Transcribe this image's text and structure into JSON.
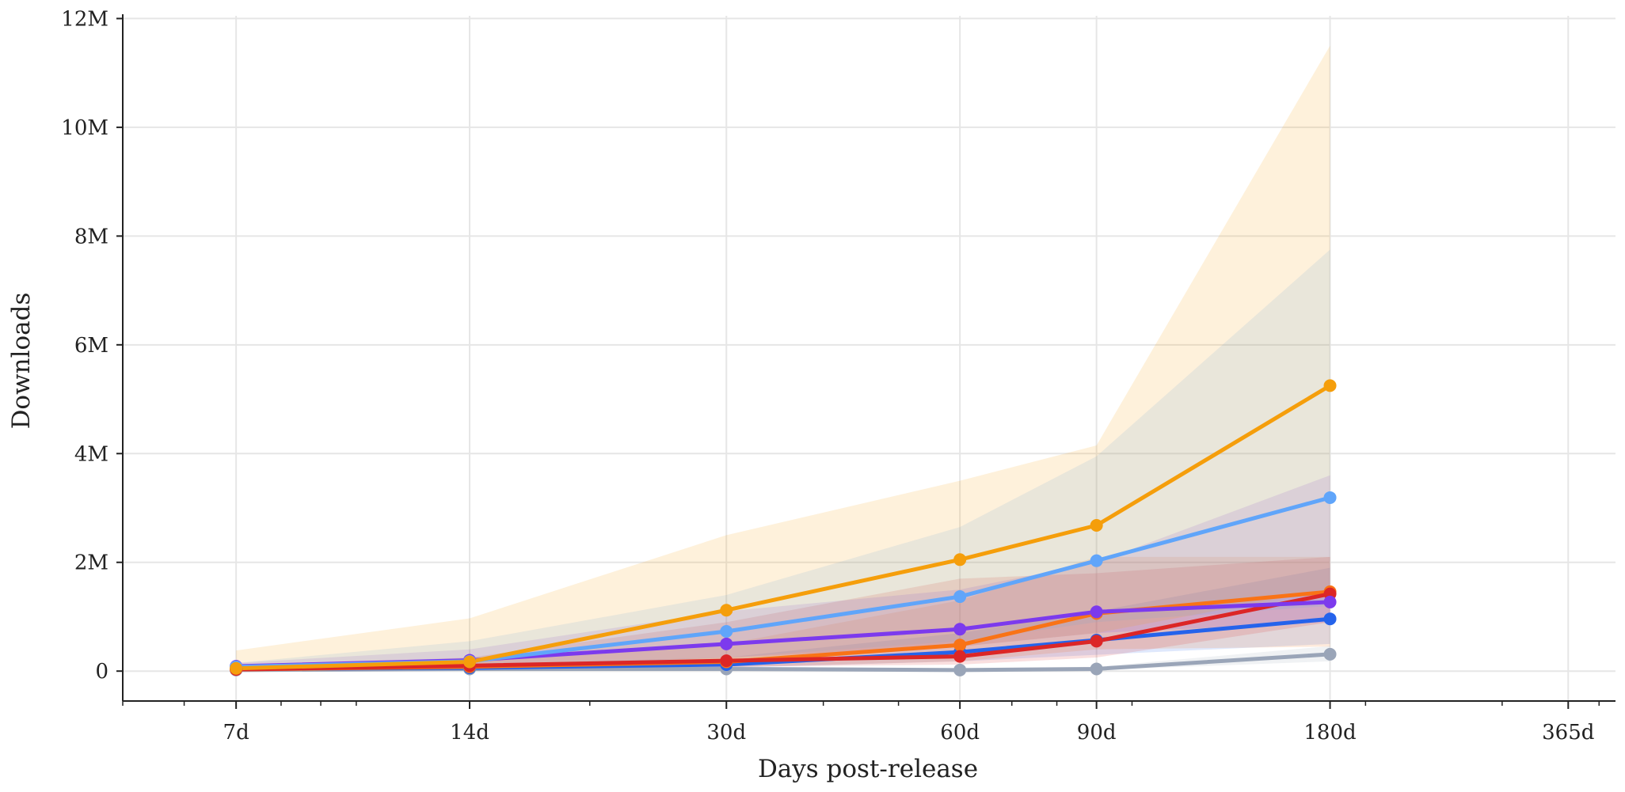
{
  "chart_data": {
    "type": "line",
    "xlabel": "Days post-release",
    "ylabel": "Downloads",
    "x_scale": "log",
    "x_tick_values": [
      7,
      14,
      30,
      60,
      90,
      180,
      365
    ],
    "x_tick_labels": [
      "7d",
      "14d",
      "30d",
      "60d",
      "90d",
      "180d",
      "365d"
    ],
    "x_range": [
      5,
      420
    ],
    "y_tick_values": [
      0,
      2000000,
      4000000,
      6000000,
      8000000,
      10000000,
      12000000
    ],
    "y_tick_labels": [
      "0",
      "2M",
      "4M",
      "6M",
      "8M",
      "10M",
      "12M"
    ],
    "y_range": [
      -550000,
      12050000
    ],
    "grid": true,
    "series": [
      {
        "color": "#9aa5b8",
        "x": [
          7,
          14,
          30,
          60,
          90,
          180
        ],
        "values": [
          20000,
          40000,
          40000,
          20000,
          40000,
          310000
        ],
        "lower": [
          10000,
          20000,
          20000,
          10000,
          20000,
          180000
        ],
        "upper": [
          40000,
          80000,
          80000,
          50000,
          80000,
          460000
        ]
      },
      {
        "color": "#2563eb",
        "x": [
          7,
          14,
          30,
          60,
          90,
          180
        ],
        "values": [
          40000,
          60000,
          120000,
          350000,
          570000,
          960000
        ],
        "lower": [
          20000,
          30000,
          60000,
          180000,
          300000,
          500000
        ],
        "upper": [
          80000,
          120000,
          250000,
          700000,
          1100000,
          1900000
        ]
      },
      {
        "color": "#f97316",
        "x": [
          7,
          14,
          30,
          60,
          90,
          180
        ],
        "values": [
          30000,
          80000,
          170000,
          480000,
          1060000,
          1460000
        ],
        "lower": [
          10000,
          30000,
          70000,
          180000,
          400000,
          450000
        ],
        "upper": [
          80000,
          200000,
          500000,
          1300000,
          2100000,
          2100000
        ]
      },
      {
        "color": "#dc2626",
        "x": [
          7,
          14,
          30,
          60,
          90,
          180
        ],
        "values": [
          30000,
          100000,
          190000,
          270000,
          550000,
          1420000
        ],
        "lower": [
          10000,
          40000,
          80000,
          120000,
          250000,
          900000
        ],
        "upper": [
          80000,
          250000,
          900000,
          1700000,
          1800000,
          2100000
        ]
      },
      {
        "color": "#7c3aed",
        "x": [
          7,
          14,
          30,
          60,
          90,
          180
        ],
        "values": [
          90000,
          200000,
          500000,
          770000,
          1090000,
          1270000
        ],
        "lower": [
          30000,
          80000,
          250000,
          450000,
          700000,
          900000
        ],
        "upper": [
          150000,
          400000,
          1100000,
          1500000,
          2000000,
          3600000
        ]
      },
      {
        "color": "#60a5fa",
        "x": [
          7,
          14,
          30,
          60,
          90,
          180
        ],
        "values": [
          80000,
          180000,
          730000,
          1370000,
          2030000,
          3190000
        ],
        "lower": [
          30000,
          70000,
          250000,
          550000,
          900000,
          1200000
        ],
        "upper": [
          150000,
          550000,
          1400000,
          2650000,
          3950000,
          7750000
        ]
      },
      {
        "color": "#f59e0b",
        "x": [
          7,
          14,
          30,
          60,
          90,
          180
        ],
        "values": [
          50000,
          170000,
          1120000,
          2050000,
          2680000,
          5250000
        ],
        "lower": [
          10000,
          40000,
          200000,
          450000,
          700000,
          1500000
        ],
        "upper": [
          380000,
          970000,
          2500000,
          3500000,
          4150000,
          11500000
        ]
      }
    ]
  }
}
